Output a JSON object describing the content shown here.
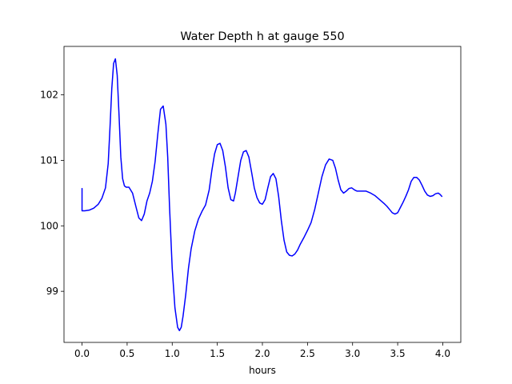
{
  "chart_data": {
    "type": "line",
    "title": "Water Depth h at gauge 550",
    "xlabel": "hours",
    "ylabel": "",
    "xlim": [
      -0.2,
      4.2
    ],
    "ylim": [
      98.22,
      102.74
    ],
    "x_ticks": [
      0.0,
      0.5,
      1.0,
      1.5,
      2.0,
      2.5,
      3.0,
      3.5,
      4.0
    ],
    "x_tick_labels": [
      "0.0",
      "0.5",
      "1.0",
      "1.5",
      "2.0",
      "2.5",
      "3.0",
      "3.5",
      "4.0"
    ],
    "y_ticks": [
      99,
      100,
      101,
      102
    ],
    "y_tick_labels": [
      "99",
      "100",
      "101",
      "102"
    ],
    "grid": false,
    "legend": "none",
    "series": [
      {
        "color": "#0000ff",
        "x": [
          0.0,
          0.0,
          0.03,
          0.08,
          0.13,
          0.18,
          0.22,
          0.26,
          0.29,
          0.31,
          0.33,
          0.35,
          0.37,
          0.39,
          0.41,
          0.43,
          0.45,
          0.47,
          0.49,
          0.52,
          0.56,
          0.6,
          0.63,
          0.66,
          0.69,
          0.72,
          0.75,
          0.78,
          0.81,
          0.84,
          0.87,
          0.9,
          0.93,
          0.95,
          0.97,
          1.0,
          1.03,
          1.06,
          1.08,
          1.1,
          1.12,
          1.15,
          1.18,
          1.21,
          1.25,
          1.29,
          1.33,
          1.37,
          1.41,
          1.44,
          1.47,
          1.5,
          1.53,
          1.56,
          1.59,
          1.62,
          1.65,
          1.68,
          1.7,
          1.73,
          1.76,
          1.79,
          1.82,
          1.85,
          1.88,
          1.91,
          1.94,
          1.97,
          2.0,
          2.03,
          2.06,
          2.09,
          2.12,
          2.15,
          2.18,
          2.21,
          2.24,
          2.27,
          2.3,
          2.33,
          2.36,
          2.39,
          2.42,
          2.46,
          2.5,
          2.54,
          2.58,
          2.62,
          2.66,
          2.7,
          2.74,
          2.78,
          2.81,
          2.84,
          2.87,
          2.9,
          2.93,
          2.96,
          2.99,
          3.02,
          3.05,
          3.1,
          3.15,
          3.2,
          3.25,
          3.3,
          3.35,
          3.38,
          3.41,
          3.44,
          3.47,
          3.5,
          3.53,
          3.56,
          3.59,
          3.62,
          3.65,
          3.68,
          3.71,
          3.74,
          3.77,
          3.8,
          3.83,
          3.86,
          3.89,
          3.92,
          3.95,
          3.97,
          3.99
        ],
        "y": [
          100.57,
          100.23,
          100.23,
          100.24,
          100.27,
          100.33,
          100.42,
          100.58,
          100.95,
          101.5,
          102.1,
          102.48,
          102.55,
          102.3,
          101.7,
          101.05,
          100.72,
          100.61,
          100.59,
          100.59,
          100.5,
          100.28,
          100.12,
          100.08,
          100.18,
          100.38,
          100.5,
          100.68,
          100.98,
          101.4,
          101.78,
          101.83,
          101.55,
          101.05,
          100.3,
          99.35,
          98.75,
          98.45,
          98.4,
          98.45,
          98.62,
          98.95,
          99.35,
          99.65,
          99.92,
          100.1,
          100.22,
          100.32,
          100.55,
          100.85,
          101.1,
          101.24,
          101.26,
          101.15,
          100.9,
          100.58,
          100.4,
          100.38,
          100.5,
          100.75,
          101.0,
          101.13,
          101.15,
          101.05,
          100.82,
          100.58,
          100.43,
          100.35,
          100.33,
          100.4,
          100.58,
          100.75,
          100.8,
          100.72,
          100.45,
          100.08,
          99.78,
          99.6,
          99.55,
          99.54,
          99.57,
          99.63,
          99.72,
          99.82,
          99.93,
          100.05,
          100.25,
          100.5,
          100.75,
          100.93,
          101.02,
          101.0,
          100.88,
          100.7,
          100.55,
          100.5,
          100.53,
          100.57,
          100.58,
          100.55,
          100.53,
          100.53,
          100.53,
          100.5,
          100.46,
          100.4,
          100.34,
          100.3,
          100.25,
          100.2,
          100.18,
          100.2,
          100.28,
          100.36,
          100.45,
          100.55,
          100.68,
          100.74,
          100.74,
          100.7,
          100.62,
          100.53,
          100.47,
          100.45,
          100.46,
          100.49,
          100.5,
          100.48,
          100.45
        ]
      }
    ]
  }
}
